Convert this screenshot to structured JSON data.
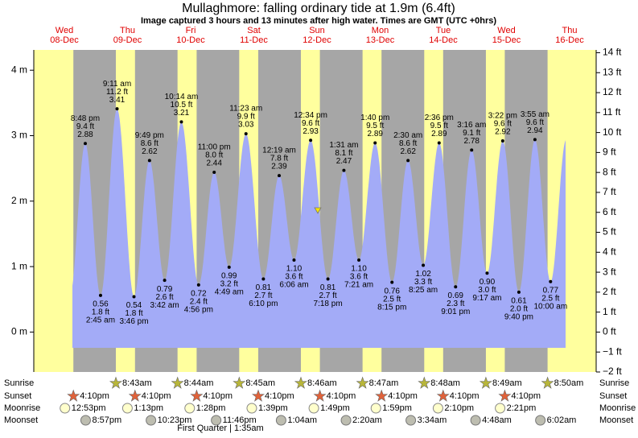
{
  "chart_data": {
    "type": "area",
    "title": "Mullaghmore: falling  ordinary tide at 1.9m (6.4ft)",
    "subtitle": "Image captured 3 hours and 13 minutes after high water. Times are GMT (UTC +0hrs)",
    "days": [
      {
        "name": "Wed",
        "date": "08-Dec"
      },
      {
        "name": "Thu",
        "date": "09-Dec"
      },
      {
        "name": "Fri",
        "date": "10-Dec"
      },
      {
        "name": "Sat",
        "date": "11-Dec"
      },
      {
        "name": "Sun",
        "date": "12-Dec"
      },
      {
        "name": "Mon",
        "date": "13-Dec"
      },
      {
        "name": "Tue",
        "date": "14-Dec"
      },
      {
        "name": "Wed",
        "date": "15-Dec"
      },
      {
        "name": "Thu",
        "date": "16-Dec"
      }
    ],
    "x": [
      "8:48 pm",
      "2:45 am",
      "9:11 am",
      "3:46 pm",
      "9:49 pm",
      "3:42 am",
      "10:14 am",
      "4:56 pm",
      "11:00 pm",
      "4:49 am",
      "11:23 am",
      "6:10 pm",
      "12:19 am",
      "6:06 am",
      "12:34 pm",
      "7:18 pm",
      "1:31 am",
      "7:21 am",
      "1:40 pm",
      "8:15 pm",
      "2:30 am",
      "8:25 am",
      "2:36 pm",
      "9:01 pm",
      "3:16 am",
      "9:17 am",
      "3:22 pm",
      "9:40 pm",
      "3:55 am",
      "10:00 am"
    ],
    "values": [
      2.88,
      0.56,
      3.41,
      0.54,
      2.62,
      0.79,
      3.21,
      0.72,
      2.44,
      0.99,
      3.03,
      0.81,
      2.39,
      1.1,
      2.93,
      0.81,
      2.47,
      1.1,
      2.89,
      0.76,
      2.62,
      1.02,
      2.89,
      0.69,
      2.78,
      0.9,
      2.92,
      0.61,
      2.94,
      0.77
    ],
    "value_labels": [
      "2.88",
      "0.56",
      "3.41",
      "0.54",
      "2.62",
      "0.79",
      "3.21",
      "0.72",
      "2.44",
      "0.99",
      "3.03",
      "0.81",
      "2.39",
      "1.10",
      "2.93",
      "0.81",
      "2.47",
      "1.10",
      "2.89",
      "0.76",
      "2.62",
      "1.02",
      "2.89",
      "0.69",
      "2.78",
      "0.90",
      "2.92",
      "0.61",
      "2.94",
      "0.77"
    ],
    "feet_labels": [
      "9.4 ft",
      "1.8 ft",
      "11.2 ft",
      "1.8 ft",
      "8.6 ft",
      "2.6 ft",
      "10.5 ft",
      "2.4 ft",
      "8.0 ft",
      "3.2 ft",
      "9.9 ft",
      "2.7 ft",
      "7.8 ft",
      "3.6 ft",
      "9.6 ft",
      "2.7 ft",
      "8.1 ft",
      "3.6 ft",
      "9.5 ft",
      "2.5 ft",
      "8.6 ft",
      "3.3 ft",
      "9.5 ft",
      "2.3 ft",
      "9.1 ft",
      "3.0 ft",
      "9.6 ft",
      "2.0 ft",
      "9.6 ft",
      "2.5 ft"
    ],
    "color": "#a3abf7",
    "ylim": [
      -0.61,
      4.31
    ],
    "yticks": [
      {
        "value": 0,
        "label": "0 m"
      },
      {
        "value": 1,
        "label": "1 m"
      },
      {
        "value": 2,
        "label": "2 m"
      },
      {
        "value": 3,
        "label": "3 m"
      },
      {
        "value": 4,
        "label": "4 m"
      }
    ],
    "y2lim": [
      -2,
      14.14
    ],
    "y2ticks": [
      {
        "value": -2,
        "label": "−2 ft"
      },
      {
        "value": -1,
        "label": "−1 ft"
      },
      {
        "value": 0,
        "label": "0 ft"
      },
      {
        "value": 1,
        "label": "1 ft"
      },
      {
        "value": 2,
        "label": "2 ft"
      },
      {
        "value": 3,
        "label": "3 ft"
      },
      {
        "value": 4,
        "label": "4 ft"
      },
      {
        "value": 5,
        "label": "5 ft"
      },
      {
        "value": 6,
        "label": "6 ft"
      },
      {
        "value": 7,
        "label": "7 ft"
      },
      {
        "value": 8,
        "label": "8 ft"
      },
      {
        "value": 9,
        "label": "9 ft"
      },
      {
        "value": 10,
        "label": "10 ft"
      },
      {
        "value": 11,
        "label": "11 ft"
      },
      {
        "value": 12,
        "label": "12 ft"
      },
      {
        "value": 13,
        "label": "13 ft"
      },
      {
        "value": 14,
        "label": "14 ft"
      }
    ],
    "astro": [
      {
        "name": "Sunrise",
        "times": [
          null,
          "8:43am",
          "8:44am",
          "8:45am",
          "8:46am",
          "8:47am",
          "8:48am",
          "8:49am",
          "8:50am"
        ]
      },
      {
        "name": "Sunset",
        "times": [
          "4:10pm",
          "4:10pm",
          "4:10pm",
          "4:10pm",
          "4:10pm",
          "4:10pm",
          "4:10pm",
          "4:10pm",
          null
        ]
      },
      {
        "name": "Moonrise",
        "times": [
          "12:53pm",
          "1:13pm",
          "1:28pm",
          "1:39pm",
          "1:49pm",
          "1:59pm",
          "2:10pm",
          "2:21pm",
          null
        ]
      },
      {
        "name": "Moonset",
        "times": [
          "8:57pm",
          "10:23pm",
          "11:46pm",
          null,
          "1:04am",
          "2:20am",
          "3:34am",
          "4:48am",
          "6:02am"
        ]
      }
    ],
    "moon_phase": "First Quarter | 1:35am"
  }
}
